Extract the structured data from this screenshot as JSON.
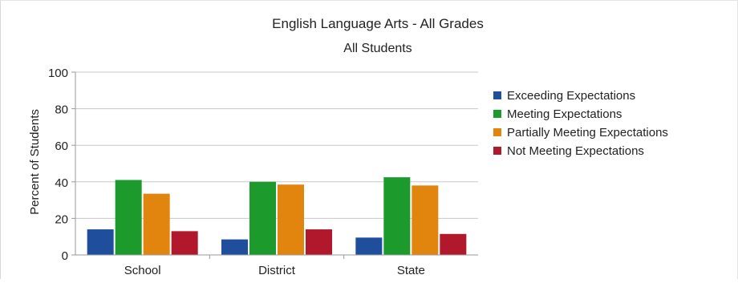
{
  "chart_data": {
    "type": "bar",
    "title": "English Language Arts - All Grades",
    "subtitle": "All Students",
    "xlabel": "",
    "ylabel": "Percent of Students",
    "ylim": [
      0,
      100
    ],
    "yticks": [
      0,
      20,
      40,
      60,
      80,
      100
    ],
    "categories": [
      "School",
      "District",
      "State"
    ],
    "series": [
      {
        "name": "Exceeding Expectations",
        "color": "#1f4e9c",
        "values": [
          14,
          8.5,
          9.5
        ]
      },
      {
        "name": "Meeting Expectations",
        "color": "#1c9a2c",
        "values": [
          41,
          40,
          42.5
        ]
      },
      {
        "name": "Partially Meeting Expectations",
        "color": "#e1850f",
        "values": [
          33.5,
          38.5,
          38
        ]
      },
      {
        "name": "Not Meeting Expectations",
        "color": "#b2182b",
        "values": [
          13,
          14,
          11.5
        ]
      }
    ],
    "grid": true,
    "legend_position": "right"
  }
}
